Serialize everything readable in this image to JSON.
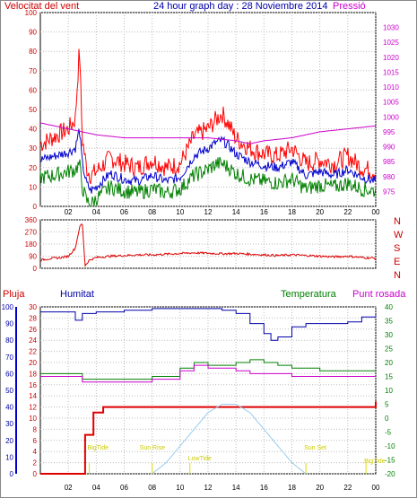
{
  "header": {
    "left_label": "Velocitat del vent",
    "title": "24 hour graph day : 28 Noviembre 2014",
    "right_label": "Pressió"
  },
  "bottom_header": {
    "rain_label": "Pluja",
    "humidity_label": "Humitat",
    "temp_label": "Temperatura",
    "dew_label": "Punt rosada"
  },
  "colors": {
    "wind_gust": "#ff0000",
    "wind_avg": "#0000cc",
    "wind_min": "#008000",
    "pressure": "#cc00cc",
    "direction": "#dd0000",
    "rain": "#dd0000",
    "humidity": "#0000aa",
    "temperature": "#008000",
    "dew": "#cc00cc",
    "solar": "#99ccee",
    "events": "#dddd00"
  },
  "chart_data": [
    {
      "type": "line",
      "title": "",
      "x_ticks": [
        "02",
        "04",
        "06",
        "08",
        "10",
        "12",
        "14",
        "16",
        "18",
        "20",
        "22",
        "00"
      ],
      "y_left_ticks": [
        0,
        10,
        20,
        30,
        40,
        50,
        60,
        70,
        80,
        90,
        100
      ],
      "y_right_ticks": [
        975,
        980,
        985,
        990,
        995,
        1000,
        1005,
        1010,
        1015,
        1020,
        1025,
        1030
      ],
      "ylim_left": [
        0,
        100
      ],
      "ylim_right": [
        970,
        1035
      ],
      "series": [
        {
          "key": "gust",
          "x": [
            0,
            1,
            2,
            2.5,
            2.8,
            3,
            3.3,
            3.6,
            4,
            5,
            6,
            7,
            8,
            9,
            10,
            11,
            12,
            12.6,
            13,
            13.5,
            14,
            15,
            16,
            17,
            18,
            19,
            20,
            21,
            22,
            23,
            24
          ],
          "y": [
            32,
            36,
            40,
            45,
            82,
            35,
            20,
            16,
            18,
            25,
            22,
            20,
            24,
            20,
            22,
            36,
            40,
            45,
            48,
            42,
            35,
            30,
            27,
            26,
            30,
            22,
            24,
            22,
            26,
            20,
            18
          ]
        },
        {
          "key": "avg",
          "x": [
            0,
            1,
            2,
            2.5,
            2.8,
            3,
            3.3,
            3.6,
            4,
            5,
            6,
            7,
            8,
            9,
            10,
            11,
            12,
            12.6,
            13,
            13.5,
            14,
            15,
            16,
            17,
            18,
            19,
            20,
            21,
            22,
            23,
            24
          ],
          "y": [
            24,
            26,
            28,
            30,
            40,
            22,
            12,
            8,
            10,
            17,
            14,
            13,
            16,
            13,
            15,
            26,
            30,
            33,
            34,
            31,
            27,
            23,
            21,
            20,
            23,
            16,
            18,
            16,
            19,
            15,
            13
          ]
        },
        {
          "key": "min",
          "x": [
            0,
            1,
            2,
            2.5,
            2.8,
            3,
            3.3,
            3.6,
            4,
            5,
            6,
            7,
            8,
            9,
            10,
            11,
            12,
            12.6,
            13,
            13.5,
            14,
            15,
            16,
            17,
            18,
            19,
            20,
            21,
            22,
            23,
            24
          ],
          "y": [
            15,
            16,
            18,
            19,
            22,
            10,
            3,
            1,
            4,
            10,
            8,
            7,
            9,
            7,
            9,
            16,
            19,
            22,
            22,
            20,
            17,
            14,
            13,
            12,
            14,
            9,
            11,
            10,
            12,
            9,
            8
          ]
        },
        {
          "key": "pressure",
          "x": [
            0,
            2,
            3,
            4,
            6,
            8,
            10,
            12,
            14,
            15,
            16,
            18,
            20,
            22,
            24
          ],
          "y": [
            998,
            996,
            995,
            994,
            993,
            993,
            993,
            993,
            992,
            991,
            992,
            993,
            995,
            996,
            997
          ]
        }
      ]
    },
    {
      "type": "line",
      "title": "",
      "y_ticks": [
        0,
        90,
        180,
        270,
        360
      ],
      "ylim": [
        0,
        360
      ],
      "direction_labels": [
        "N",
        "W",
        "S",
        "E",
        "N"
      ],
      "series": [
        {
          "key": "direction",
          "x": [
            0,
            0.5,
            1,
            1.5,
            2,
            2.5,
            2.8,
            3,
            3.2,
            3.5,
            4,
            5,
            6,
            7,
            8,
            9,
            10,
            11,
            12,
            13,
            14,
            15,
            16,
            17,
            18,
            19,
            20,
            21,
            22,
            23,
            24
          ],
          "y": [
            60,
            70,
            75,
            80,
            90,
            150,
            300,
            340,
            20,
            60,
            80,
            90,
            95,
            100,
            100,
            105,
            110,
            115,
            112,
            108,
            110,
            105,
            100,
            95,
            100,
            95,
            90,
            85,
            90,
            80,
            75
          ]
        }
      ]
    },
    {
      "type": "line",
      "title": "",
      "x_ticks": [
        "02",
        "04",
        "06",
        "08",
        "10",
        "12",
        "14",
        "16",
        "18",
        "20",
        "22",
        "00"
      ],
      "rain_ticks": [
        0,
        2,
        4,
        6,
        8,
        10,
        12,
        14,
        16,
        18,
        20,
        22,
        24,
        26,
        28,
        30
      ],
      "humidity_ticks": [
        0,
        10,
        20,
        30,
        40,
        50,
        60,
        70,
        80,
        90,
        100
      ],
      "temp_ticks": [
        -20,
        -15,
        -10,
        -5,
        0,
        5,
        10,
        15,
        20,
        25,
        30,
        35,
        40
      ],
      "ylim_rain": [
        0,
        30
      ],
      "ylim_temp": [
        -20,
        40
      ],
      "series": [
        {
          "key": "humidity",
          "x": [
            0,
            1,
            2,
            2.5,
            3,
            4,
            6,
            8,
            10,
            12,
            13,
            14,
            15,
            16,
            16.5,
            17,
            18,
            19,
            20,
            22,
            23,
            24
          ],
          "y": [
            97,
            97,
            97,
            92,
            96,
            97,
            98,
            99,
            99,
            99,
            98,
            96,
            90,
            84,
            80,
            82,
            88,
            90,
            90,
            91,
            94,
            95
          ]
        },
        {
          "key": "temperature",
          "x": [
            0,
            2,
            3,
            4,
            6,
            8,
            10,
            11,
            12,
            13,
            14,
            15,
            16,
            17,
            18,
            20,
            22,
            24
          ],
          "y": [
            16,
            16,
            14,
            14,
            14,
            15,
            18,
            20,
            19,
            19,
            20,
            21,
            20,
            19,
            18,
            17,
            17,
            17
          ]
        },
        {
          "key": "dew",
          "x": [
            0,
            2,
            3,
            4,
            6,
            8,
            10,
            11,
            12,
            13,
            14,
            15,
            16,
            17,
            18,
            20,
            22,
            24
          ],
          "y": [
            15,
            15,
            13,
            13,
            13,
            14,
            17,
            19,
            18,
            18,
            17,
            16,
            16,
            16,
            15,
            15,
            15,
            15
          ]
        },
        {
          "key": "rain",
          "x": [
            0,
            2.8,
            3.2,
            3.8,
            4.5,
            6,
            8,
            10,
            12,
            14,
            16,
            18,
            20,
            22,
            23.8,
            24
          ],
          "y": [
            0,
            0,
            7,
            11,
            12,
            12,
            12,
            12,
            12,
            12,
            12,
            12,
            12,
            12,
            12,
            13
          ]
        },
        {
          "key": "solar",
          "x": [
            8,
            9,
            10,
            11,
            12,
            13,
            14,
            15,
            16,
            17,
            18,
            19
          ],
          "y": [
            -20,
            -16,
            -10,
            -4,
            2,
            5,
            5,
            2,
            -4,
            -10,
            -16,
            -20
          ]
        }
      ],
      "annotations": [
        {
          "label": "BigTide",
          "x": 3.5
        },
        {
          "label": "Sun Rise",
          "x": 8.0
        },
        {
          "label": "LowTide",
          "x": 10.7
        },
        {
          "label": "Sun Set",
          "x": 19.0
        },
        {
          "label": "BigTide",
          "x": 23.3
        }
      ]
    }
  ]
}
